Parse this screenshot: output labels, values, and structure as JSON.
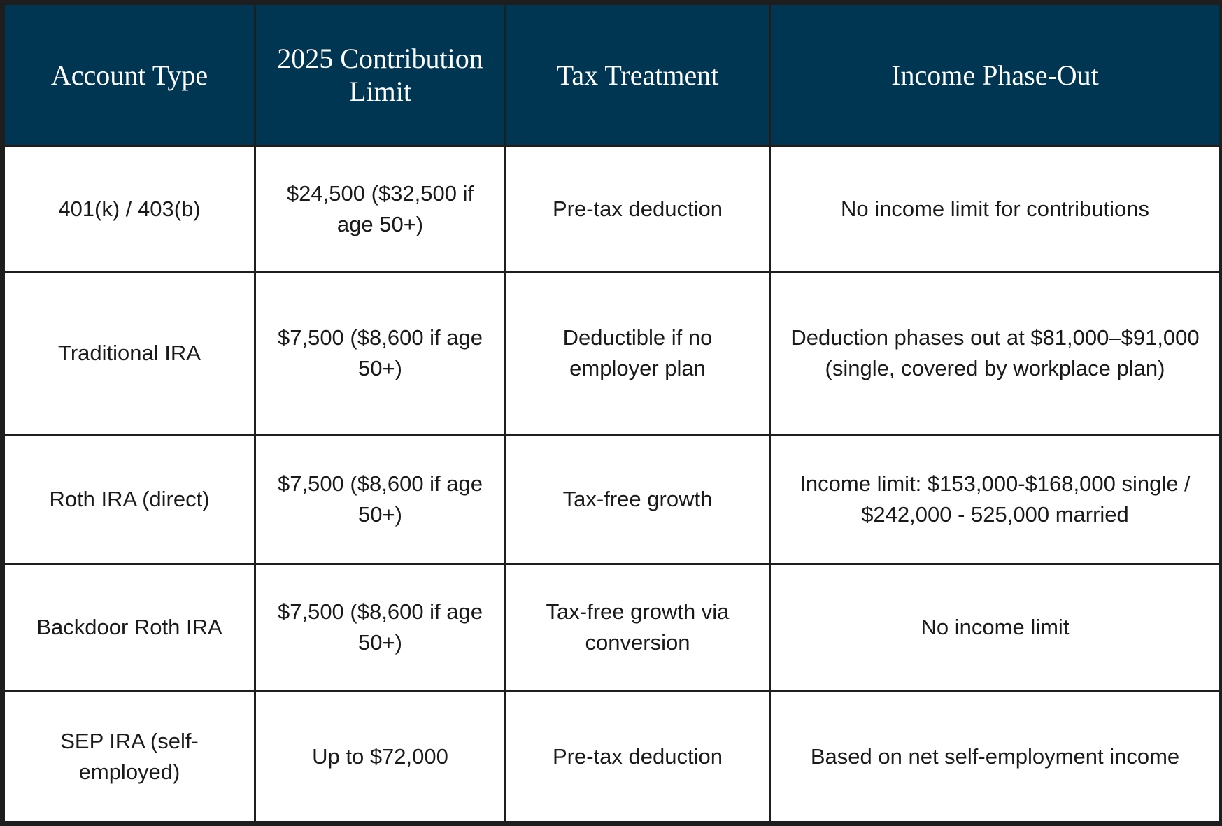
{
  "table": {
    "headers": [
      "Account Type",
      "2025 Contribution Limit",
      "Tax Treatment",
      "Income Phase-Out"
    ],
    "rows": [
      [
        "401(k) / 403(b)",
        "$24,500 ($32,500 if age 50+)",
        "Pre-tax deduction",
        "No income limit for contributions"
      ],
      [
        "Traditional IRA",
        "$7,500 ($8,600 if age 50+)",
        "Deductible if no employer plan",
        "Deduction phases out at $81,000–$91,000 (single, covered by workplace plan)"
      ],
      [
        "Roth IRA (direct)",
        "$7,500 ($8,600 if age 50+)",
        "Tax-free growth",
        "Income limit: $153,000-$168,000 single / $242,000 - 525,000 married"
      ],
      [
        "Backdoor Roth IRA",
        "$7,500 ($8,600 if age 50+)",
        "Tax-free growth via conversion",
        "No income limit"
      ],
      [
        "SEP IRA (self-employed)",
        "Up to $72,000",
        "Pre-tax deduction",
        "Based on net self-employment income"
      ]
    ]
  }
}
